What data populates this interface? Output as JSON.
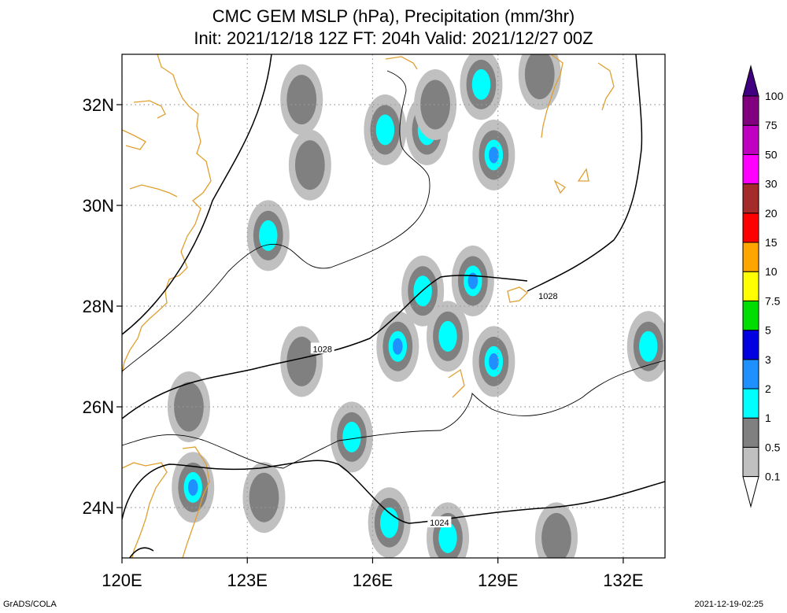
{
  "title_line1": "CMC GEM MSLP (hPa), Precipitation (mm/3hr)",
  "title_line2": "Init: 2021/12/18 12Z  FT: 204h  Valid: 2021/12/27 00Z",
  "footer_left": "GrADS/COLA",
  "footer_right": "2021-12-19-02:25",
  "chart_data": {
    "type": "heatmap",
    "x_range": [
      120,
      133
    ],
    "y_range": [
      23,
      33
    ],
    "x_ticks": [
      {
        "value": 120,
        "label": "120E"
      },
      {
        "value": 123,
        "label": "123E"
      },
      {
        "value": 126,
        "label": "126E"
      },
      {
        "value": 129,
        "label": "129E"
      },
      {
        "value": 132,
        "label": "132E"
      }
    ],
    "y_ticks": [
      {
        "value": 24,
        "label": "24N"
      },
      {
        "value": 26,
        "label": "26N"
      },
      {
        "value": 28,
        "label": "28N"
      },
      {
        "value": 30,
        "label": "30N"
      },
      {
        "value": 32,
        "label": "32N"
      }
    ],
    "grid": true,
    "colorbar": {
      "levels": [
        "0.1",
        "0.5",
        "1",
        "2",
        "3",
        "5",
        "7.5",
        "10",
        "15",
        "20",
        "30",
        "50",
        "75",
        "100"
      ],
      "colors": [
        "#ffffff",
        "#c0c0c0",
        "#808080",
        "#00ffff",
        "#1e90ff",
        "#0000e0",
        "#00dd00",
        "#ffff00",
        "#ffa500",
        "#ff0000",
        "#a52a2a",
        "#ff00ff",
        "#c000c0",
        "#800080",
        "#400080"
      ]
    },
    "isobar_labels": [
      {
        "text": "1028",
        "lon": 124.8,
        "lat": 27.15
      },
      {
        "text": "1028",
        "lon": 130.2,
        "lat": 28.2
      },
      {
        "text": "1024",
        "lon": 127.6,
        "lat": 23.7
      }
    ],
    "precip_cells": [
      {
        "lon": 121.7,
        "lat": 24.4,
        "level": 3
      },
      {
        "lon": 121.6,
        "lat": 26.0,
        "level": 1
      },
      {
        "lon": 123.5,
        "lat": 29.4,
        "level": 2
      },
      {
        "lon": 124.3,
        "lat": 32.1,
        "level": 1
      },
      {
        "lon": 124.5,
        "lat": 30.8,
        "level": 1
      },
      {
        "lon": 124.3,
        "lat": 26.9,
        "level": 1
      },
      {
        "lon": 123.4,
        "lat": 24.2,
        "level": 1
      },
      {
        "lon": 125.5,
        "lat": 25.4,
        "level": 2
      },
      {
        "lon": 126.3,
        "lat": 31.5,
        "level": 2
      },
      {
        "lon": 127.3,
        "lat": 31.5,
        "level": 2
      },
      {
        "lon": 127.5,
        "lat": 32.0,
        "level": 1
      },
      {
        "lon": 128.6,
        "lat": 32.4,
        "level": 2
      },
      {
        "lon": 128.9,
        "lat": 31.0,
        "level": 3
      },
      {
        "lon": 127.2,
        "lat": 28.3,
        "level": 2
      },
      {
        "lon": 126.6,
        "lat": 27.2,
        "level": 3
      },
      {
        "lon": 128.4,
        "lat": 28.5,
        "level": 3
      },
      {
        "lon": 127.8,
        "lat": 27.4,
        "level": 2
      },
      {
        "lon": 128.9,
        "lat": 26.9,
        "level": 3
      },
      {
        "lon": 126.4,
        "lat": 23.7,
        "level": 2
      },
      {
        "lon": 127.8,
        "lat": 23.4,
        "level": 2
      },
      {
        "lon": 130.4,
        "lat": 23.4,
        "level": 1
      },
      {
        "lon": 132.6,
        "lat": 27.2,
        "level": 2
      },
      {
        "lon": 130.0,
        "lat": 32.6,
        "level": 1
      }
    ]
  }
}
